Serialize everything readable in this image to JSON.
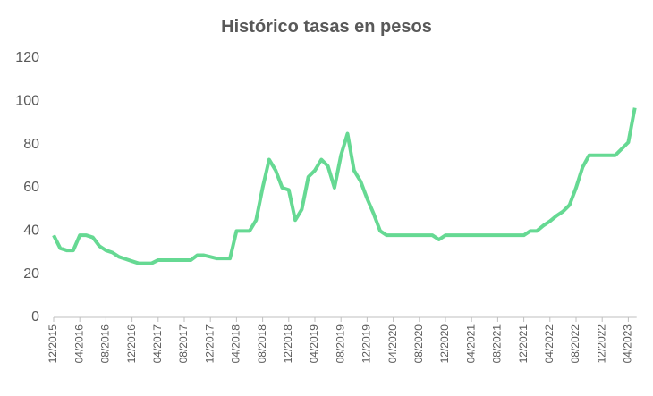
{
  "chart_data": {
    "type": "line",
    "title": "Histórico tasas en pesos",
    "x": [
      "12/2015",
      null,
      null,
      null,
      "04/2016",
      null,
      null,
      null,
      "08/2016",
      null,
      null,
      null,
      "12/2016",
      null,
      null,
      null,
      "04/2017",
      null,
      null,
      null,
      "08/2017",
      null,
      null,
      null,
      "12/2017",
      null,
      null,
      null,
      "04/2018",
      null,
      null,
      null,
      "08/2018",
      null,
      null,
      null,
      "12/2018",
      null,
      null,
      null,
      "04/2019",
      null,
      null,
      null,
      "08/2019",
      null,
      null,
      null,
      "12/2019",
      null,
      null,
      null,
      "04/2020",
      null,
      null,
      null,
      "08/2020",
      null,
      null,
      null,
      "12/2020",
      null,
      null,
      null,
      "04/2021",
      null,
      null,
      null,
      "08/2021",
      null,
      null,
      null,
      "12/2021",
      null,
      null,
      null,
      "04/2022",
      null,
      null,
      null,
      "08/2022",
      null,
      null,
      null,
      "12/2022",
      null,
      null,
      null,
      "04/2023",
      null
    ],
    "series": [
      {
        "color": "#66d993",
        "values": [
          38,
          32,
          31,
          31,
          38,
          38,
          37,
          33,
          31,
          30,
          28,
          27,
          26,
          25,
          25,
          25,
          26.5,
          26.5,
          26.5,
          26.5,
          26.5,
          26.5,
          28.75,
          28.75,
          28,
          27.25,
          27.25,
          27.25,
          40,
          40,
          40,
          45,
          60,
          73,
          68,
          60,
          59,
          45,
          50,
          65,
          68,
          73,
          70,
          60,
          75,
          85,
          68,
          63,
          55,
          48,
          40,
          38,
          38,
          38,
          38,
          38,
          38,
          38,
          38,
          36,
          38,
          38,
          38,
          38,
          38,
          38,
          38,
          38,
          38,
          38,
          38,
          38,
          38,
          40,
          40,
          42.5,
          44.5,
          47,
          49,
          52,
          60,
          69.5,
          75,
          75,
          75,
          75,
          75,
          78,
          81,
          97
        ]
      }
    ],
    "ylim": [
      0,
      120
    ],
    "yticks": [
      0,
      20,
      40,
      60,
      80,
      100,
      120
    ],
    "grid": false
  }
}
